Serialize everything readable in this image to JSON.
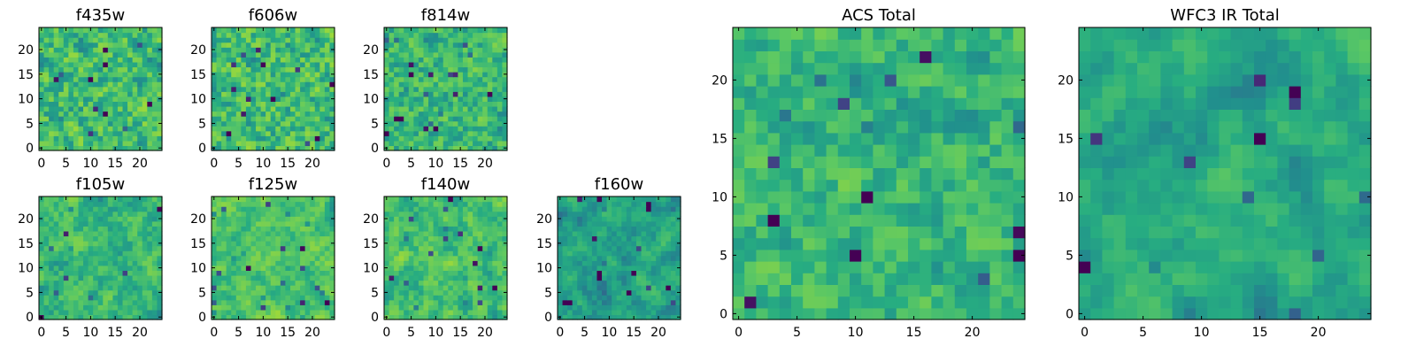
{
  "chart_data": [
    {
      "type": "heatmap",
      "title": "f435w",
      "grid": [
        25,
        25
      ],
      "xticks": [
        0,
        5,
        10,
        15,
        20
      ],
      "yticks": [
        0,
        5,
        10,
        15,
        20
      ],
      "xlim": [
        -0.5,
        24.5
      ],
      "ylim": [
        -0.5,
        24.5
      ],
      "colormap": "viridis",
      "seed": 11,
      "smooth": 0.15,
      "levels": [
        0.45,
        0.85
      ]
    },
    {
      "type": "heatmap",
      "title": "f606w",
      "grid": [
        25,
        25
      ],
      "xticks": [
        0,
        5,
        10,
        15,
        20
      ],
      "yticks": [
        0,
        5,
        10,
        15,
        20
      ],
      "xlim": [
        -0.5,
        24.5
      ],
      "ylim": [
        -0.5,
        24.5
      ],
      "colormap": "viridis",
      "seed": 23,
      "smooth": 0.15,
      "levels": [
        0.45,
        0.85
      ]
    },
    {
      "type": "heatmap",
      "title": "f814w",
      "grid": [
        25,
        25
      ],
      "xticks": [
        0,
        5,
        10,
        15,
        20
      ],
      "yticks": [
        0,
        5,
        10,
        15,
        20
      ],
      "xlim": [
        -0.5,
        24.5
      ],
      "ylim": [
        -0.5,
        24.5
      ],
      "colormap": "viridis",
      "seed": 37,
      "smooth": 0.15,
      "levels": [
        0.45,
        0.82
      ]
    },
    {
      "type": "heatmap",
      "title": "f105w",
      "grid": [
        25,
        25
      ],
      "xticks": [
        0,
        5,
        10,
        15,
        20
      ],
      "yticks": [
        0,
        5,
        10,
        15,
        20
      ],
      "xlim": [
        -0.5,
        24.5
      ],
      "ylim": [
        -0.5,
        24.5
      ],
      "colormap": "viridis",
      "seed": 41,
      "smooth": 0.35,
      "levels": [
        0.45,
        0.82
      ]
    },
    {
      "type": "heatmap",
      "title": "f125w",
      "grid": [
        25,
        25
      ],
      "xticks": [
        0,
        5,
        10,
        15,
        20
      ],
      "yticks": [
        0,
        5,
        10,
        15,
        20
      ],
      "xlim": [
        -0.5,
        24.5
      ],
      "ylim": [
        -0.5,
        24.5
      ],
      "colormap": "viridis",
      "seed": 53,
      "smooth": 0.4,
      "levels": [
        0.5,
        0.85
      ]
    },
    {
      "type": "heatmap",
      "title": "f140w",
      "grid": [
        25,
        25
      ],
      "xticks": [
        0,
        5,
        10,
        15,
        20
      ],
      "yticks": [
        0,
        5,
        10,
        15,
        20
      ],
      "xlim": [
        -0.5,
        24.5
      ],
      "ylim": [
        -0.5,
        24.5
      ],
      "colormap": "viridis",
      "seed": 67,
      "smooth": 0.4,
      "levels": [
        0.45,
        0.85
      ]
    },
    {
      "type": "heatmap",
      "title": "f160w",
      "grid": [
        25,
        25
      ],
      "xticks": [
        0,
        5,
        10,
        15,
        20
      ],
      "yticks": [
        0,
        5,
        10,
        15,
        20
      ],
      "xlim": [
        -0.5,
        24.5
      ],
      "ylim": [
        -0.5,
        24.5
      ],
      "colormap": "viridis",
      "seed": 79,
      "smooth": 0.45,
      "levels": [
        0.35,
        0.72
      ]
    },
    {
      "type": "heatmap",
      "title": "ACS Total",
      "grid": [
        25,
        25
      ],
      "xticks": [
        0,
        5,
        10,
        15,
        20
      ],
      "yticks": [
        0,
        5,
        10,
        15,
        20
      ],
      "xlim": [
        -0.5,
        24.5
      ],
      "ylim": [
        -0.5,
        24.5
      ],
      "colormap": "viridis",
      "seed": 97,
      "smooth": 0.3,
      "levels": [
        0.45,
        0.8
      ]
    },
    {
      "type": "heatmap",
      "title": "WFC3 IR Total",
      "grid": [
        25,
        25
      ],
      "xticks": [
        0,
        5,
        10,
        15,
        20
      ],
      "yticks": [
        0,
        5,
        10,
        15,
        20
      ],
      "xlim": [
        -0.5,
        24.5
      ],
      "ylim": [
        -0.5,
        24.5
      ],
      "colormap": "viridis",
      "seed": 101,
      "smooth": 0.5,
      "levels": [
        0.4,
        0.75
      ]
    }
  ]
}
